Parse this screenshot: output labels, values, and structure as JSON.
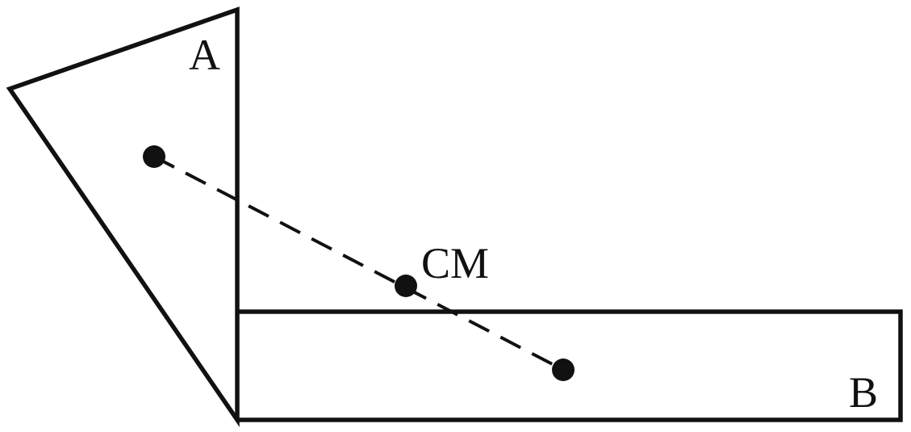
{
  "diagram": {
    "labels": {
      "a": "A",
      "b": "B",
      "cm": "CM"
    },
    "colors": {
      "ink": "#111111",
      "background": "#ffffff"
    }
  }
}
